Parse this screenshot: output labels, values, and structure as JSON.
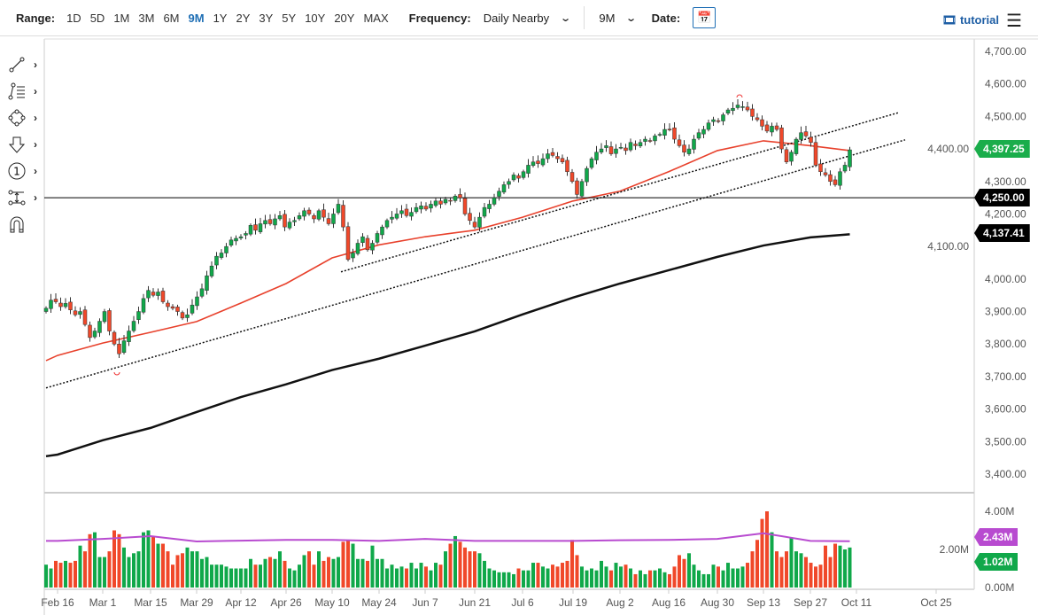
{
  "toolbar": {
    "range_label": "Range:",
    "ranges": [
      "1D",
      "5D",
      "1M",
      "3M",
      "6M",
      "9M",
      "1Y",
      "2Y",
      "3Y",
      "5Y",
      "10Y",
      "20Y",
      "MAX"
    ],
    "active_range": "9M",
    "frequency_label": "Frequency:",
    "frequency_value": "Daily Nearby",
    "period_value": "9M",
    "date_label": "Date:",
    "tutorial_label": "tutorial"
  },
  "drawing_tools": [
    "line-tool-icon",
    "fib-tool-icon",
    "shape-tool-icon",
    "arrow-tool-icon",
    "marker-tool-icon",
    "measure-tool-icon",
    "magnet-icon"
  ],
  "colors": {
    "up": "#10a84a",
    "down": "#f0482a",
    "ma_fast": "#e8412c",
    "ma_slow": "#111111",
    "volume_avg": "#b84bd0",
    "last_price_flag": "#1aad4b"
  },
  "chart_data": {
    "type": "candlestick",
    "price_axis": {
      "ticks": [
        "4,700.00",
        "4,600.00",
        "4,500.00",
        "4,400.00",
        "4,300.00",
        "4,200.00",
        "4,100.00",
        "4,000.00",
        "3,900.00",
        "3,800.00",
        "3,700.00",
        "3,600.00",
        "3,500.00",
        "3,400.00"
      ],
      "range": [
        3400,
        4700
      ]
    },
    "x_ticks": [
      "Feb 16",
      "Mar 1",
      "Mar 15",
      "Mar 29",
      "Apr 12",
      "Apr 26",
      "May 10",
      "May 24",
      "Jun 7",
      "Jun 21",
      "Jul 6",
      "Jul 19",
      "Aug 2",
      "Aug 16",
      "Aug 30",
      "Sep 13",
      "Sep 27",
      "Oct 11",
      "Oct 25"
    ],
    "close": [
      3910,
      3935,
      3930,
      3915,
      3925,
      3905,
      3890,
      3900,
      3860,
      3820,
      3840,
      3870,
      3900,
      3840,
      3800,
      3770,
      3810,
      3840,
      3870,
      3900,
      3940,
      3965,
      3950,
      3960,
      3930,
      3915,
      3910,
      3900,
      3880,
      3890,
      3920,
      3945,
      3970,
      4010,
      4040,
      4070,
      4080,
      4100,
      4120,
      4125,
      4130,
      4140,
      4165,
      4150,
      4170,
      4180,
      4170,
      4185,
      4195,
      4160,
      4175,
      4180,
      4195,
      4210,
      4200,
      4185,
      4210,
      4190,
      4170,
      4200,
      4230,
      4160,
      4060,
      4080,
      4110,
      4130,
      4090,
      4110,
      4140,
      4160,
      4180,
      4190,
      4200,
      4210,
      4195,
      4205,
      4220,
      4225,
      4215,
      4230,
      4240,
      4230,
      4245,
      4240,
      4255,
      4250,
      4200,
      4180,
      4160,
      4190,
      4220,
      4230,
      4250,
      4270,
      4290,
      4300,
      4320,
      4310,
      4330,
      4350,
      4360,
      4355,
      4370,
      4385,
      4380,
      4370,
      4360,
      4330,
      4300,
      4260,
      4300,
      4340,
      4370,
      4390,
      4400,
      4410,
      4385,
      4400,
      4405,
      4395,
      4420,
      4410,
      4420,
      4430,
      4425,
      4440,
      4445,
      4460,
      4460,
      4430,
      4410,
      4390,
      4400,
      4430,
      4450,
      4460,
      4480,
      4490,
      4485,
      4505,
      4520,
      4525,
      4535,
      4530,
      4520,
      4500,
      4490,
      4470,
      4455,
      4470,
      4460,
      4400,
      4360,
      4390,
      4430,
      4450,
      4440,
      4420,
      4350,
      4330,
      4320,
      4300,
      4290,
      4330,
      4350,
      4397.25
    ],
    "volume_millions": [
      1.2,
      1.0,
      1.4,
      1.3,
      1.4,
      1.3,
      1.4,
      2.2,
      1.9,
      2.8,
      2.9,
      1.6,
      1.6,
      1.9,
      3.0,
      2.8,
      2.1,
      1.6,
      1.8,
      1.9,
      2.9,
      3.0,
      2.7,
      2.3,
      2.3,
      1.9,
      1.2,
      1.7,
      1.8,
      2.1,
      1.9,
      1.9,
      1.5,
      1.6,
      1.2,
      1.2,
      1.2,
      1.1,
      1.0,
      1.0,
      1.0,
      1.0,
      1.5,
      1.2,
      1.2,
      1.5,
      1.6,
      1.5,
      1.9,
      1.4,
      1.0,
      0.9,
      1.2,
      1.7,
      1.9,
      1.2,
      1.9,
      1.4,
      1.6,
      1.5,
      1.6,
      2.4,
      2.5,
      2.3,
      1.5,
      1.5,
      1.4,
      2.2,
      1.5,
      1.5,
      1.0,
      1.2,
      1.0,
      1.1,
      1.0,
      1.3,
      1.0,
      1.3,
      1.1,
      0.9,
      1.3,
      1.2,
      1.9,
      2.3,
      2.7,
      2.4,
      2.1,
      1.9,
      1.9,
      1.8,
      1.4,
      1.0,
      0.9,
      0.8,
      0.8,
      0.8,
      0.7,
      1.0,
      0.9,
      0.9,
      1.3,
      1.3,
      1.1,
      1.0,
      1.2,
      1.1,
      1.3,
      1.4,
      2.5,
      1.7,
      1.1,
      0.9,
      1.0,
      0.9,
      1.4,
      1.1,
      0.9,
      1.3,
      1.1,
      1.2,
      1.0,
      0.7,
      0.9,
      0.7,
      0.9,
      0.9,
      1.0,
      0.8,
      0.7,
      1.1,
      1.7,
      1.5,
      1.8,
      1.2,
      0.9,
      0.7,
      0.7,
      1.2,
      1.1,
      0.9,
      1.3,
      1.0,
      1.0,
      1.1,
      1.3,
      1.9,
      2.5,
      3.6,
      4.0,
      2.9,
      1.9,
      1.6,
      1.9,
      2.6,
      1.9,
      1.8,
      1.6,
      1.3,
      1.1,
      1.2,
      2.2,
      1.6,
      2.3,
      2.2,
      2.0,
      2.1,
      1.02
    ],
    "ma_fast": {
      "first": 3749,
      "at_x_ticks": [
        3765,
        3803,
        3836,
        3869,
        3926,
        3986,
        4065,
        4105,
        4130,
        4150,
        4190,
        4240,
        4270,
        4330,
        4395,
        4425,
        4410
      ],
      "last": 4395
    },
    "ma_slow": {
      "first": 3455,
      "at_x_ticks": [
        3460,
        3504,
        3542,
        3591,
        3637,
        3676,
        3720,
        3755,
        3795,
        3839,
        3891,
        3943,
        3986,
        4027,
        4068,
        4103,
        4128
      ],
      "last": 4137.41
    },
    "volume_avg": {
      "first": 2.45,
      "at_x_ticks": [
        2.45,
        2.55,
        2.7,
        2.42,
        2.46,
        2.5,
        2.5,
        2.45,
        2.55,
        2.45,
        2.45,
        2.45,
        2.48,
        2.5,
        2.55,
        2.85,
        2.45
      ],
      "last": 2.43
    },
    "trendlines": [
      {
        "from": 3665,
        "to": 4428
      },
      {
        "from": 4022,
        "to": 4512
      }
    ],
    "horizontal_line": 4250,
    "volume_axis": {
      "ticks": [
        "4.00M",
        "2.00M",
        "0.00M"
      ]
    },
    "flags": {
      "last_price": "4,397.25",
      "horizontal_line": "4,250.00",
      "ma_slow": "4,137.41",
      "volume_avg": "2.43M",
      "last_volume": "1.02M"
    }
  }
}
